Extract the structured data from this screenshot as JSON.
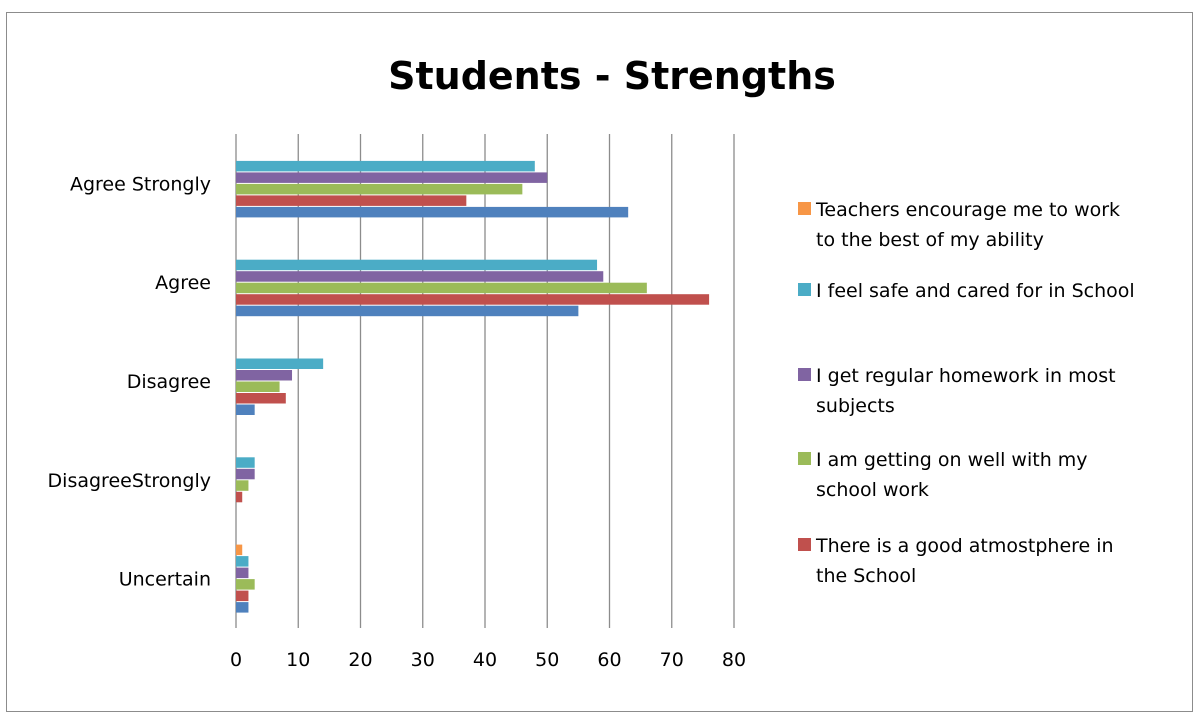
{
  "chart_data": {
    "type": "bar",
    "orientation": "horizontal",
    "title": "Students - Strengths",
    "categories": [
      "Uncertain",
      "DisagreeStrongly",
      "Disagree",
      "Agree",
      "Agree Strongly"
    ],
    "series": [
      {
        "name": "",
        "color": "#4f81bd",
        "values": [
          2,
          0,
          3,
          55,
          63
        ]
      },
      {
        "name": "There is a good atmostphere in the School",
        "color": "#c0504d",
        "values": [
          2,
          1,
          8,
          76,
          37
        ]
      },
      {
        "name": "I am getting on well with my school work",
        "color": "#9bbb59",
        "values": [
          3,
          2,
          7,
          66,
          46
        ]
      },
      {
        "name": "I get regular homework in most subjects",
        "color": "#8064a2",
        "values": [
          2,
          3,
          9,
          59,
          50
        ]
      },
      {
        "name": "I feel safe and cared for in School",
        "color": "#4bacc6",
        "values": [
          2,
          3,
          14,
          58,
          48
        ]
      },
      {
        "name": "Teachers encourage me to work to the best of my ability",
        "color": "#f79646",
        "values": [
          1,
          0,
          0,
          0,
          0
        ]
      }
    ],
    "xlim": [
      0,
      80
    ],
    "xticks": [
      0,
      10,
      20,
      30,
      40,
      50,
      60,
      70,
      80
    ],
    "grid": true,
    "legend_position": "right",
    "legend_lines": [
      {
        "series": 5,
        "lines": [
          "Teachers encourage me to work",
          "to the best of my ability"
        ]
      },
      {
        "series": 4,
        "lines": [
          "I feel safe and cared for in School"
        ]
      },
      {
        "series": 3,
        "lines": [
          "I get regular homework in most",
          "subjects"
        ]
      },
      {
        "series": 2,
        "lines": [
          "I am getting on well with my",
          "school work"
        ]
      },
      {
        "series": 1,
        "lines": [
          "There is a good atmostphere in",
          "the School"
        ]
      }
    ]
  }
}
